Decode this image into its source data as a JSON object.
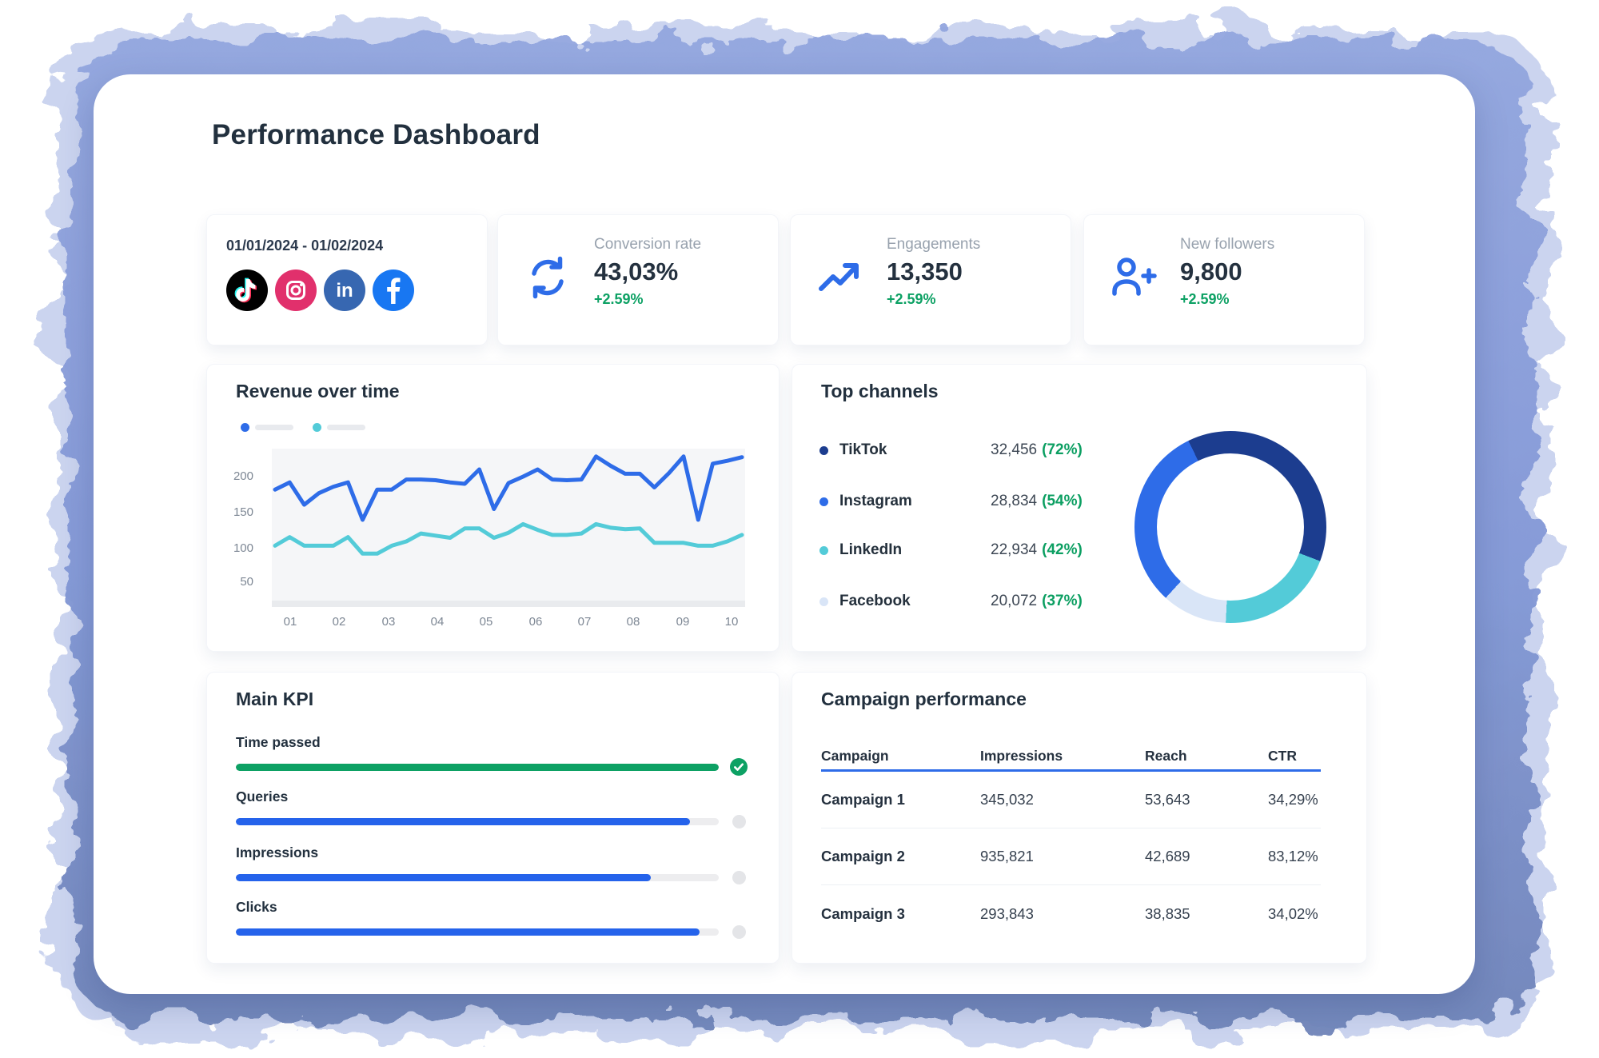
{
  "page": {
    "title": "Performance Dashboard"
  },
  "date_card": {
    "range": "01/01/2024 - 01/02/2024",
    "icons": [
      "tiktok-icon",
      "instagram-icon",
      "linkedin-icon",
      "facebook-icon"
    ]
  },
  "kpi_cards": [
    {
      "icon": "refresh-icon",
      "label": "Conversion rate",
      "value": "43,03%",
      "delta": "+2.59%"
    },
    {
      "icon": "trend-up-icon",
      "label": "Engagements",
      "value": "13,350",
      "delta": "+2.59%"
    },
    {
      "icon": "user-plus-icon",
      "label": "New followers",
      "value": "9,800",
      "delta": "+2.59%"
    }
  ],
  "revenue_panel": {
    "title": "Revenue over time"
  },
  "top_channels": {
    "title": "Top channels",
    "rows": [
      {
        "name": "TikTok",
        "value": "32,456",
        "pct": "(72%)",
        "dot_color": "#1c3d8f"
      },
      {
        "name": "Instagram",
        "value": "28,834",
        "pct": "(54%)",
        "dot_color": "#2e6ce8"
      },
      {
        "name": "LinkedIn",
        "value": "22,934",
        "pct": "(42%)",
        "dot_color": "#53cbd8"
      },
      {
        "name": "Facebook",
        "value": "20,072",
        "pct": "(37%)",
        "dot_color": "#d9e5f7"
      }
    ]
  },
  "main_kpi": {
    "title": "Main KPI",
    "bars": [
      {
        "label": "Time passed",
        "percent": 100,
        "color": "#0da164",
        "status": "complete"
      },
      {
        "label": "Queries",
        "percent": 94,
        "color": "#2563eb",
        "status": "in-progress"
      },
      {
        "label": "Impressions",
        "percent": 86,
        "color": "#2563eb",
        "status": "in-progress"
      },
      {
        "label": "Clicks",
        "percent": 96,
        "color": "#2563eb",
        "status": "in-progress"
      }
    ]
  },
  "campaign": {
    "title": "Campaign performance",
    "columns": [
      "Campaign",
      "Impressions",
      "Reach",
      "CTR"
    ],
    "rows": [
      {
        "campaign": "Campaign 1",
        "impressions": "345,032",
        "reach": "53,643",
        "ctr": "34,29%"
      },
      {
        "campaign": "Campaign 2",
        "impressions": "935,821",
        "reach": "42,689",
        "ctr": "83,12%"
      },
      {
        "campaign": "Campaign 3",
        "impressions": "293,843",
        "reach": "38,835",
        "ctr": "34,02%"
      }
    ]
  },
  "chart_data": [
    {
      "type": "line",
      "title": "Revenue over time",
      "x_labels": [
        "01",
        "02",
        "03",
        "04",
        "05",
        "06",
        "07",
        "08",
        "09",
        "10"
      ],
      "y_ticks": [
        200,
        150,
        100,
        50
      ],
      "ylim": [
        0,
        240
      ],
      "grid": false,
      "legend_position": "top-left",
      "legend_labels_visible": false,
      "series": [
        {
          "name": "series-1",
          "color": "#2e6ce8",
          "values": [
            182,
            192,
            161,
            177,
            186,
            192,
            140,
            182,
            182,
            196,
            196,
            195,
            192,
            190,
            210,
            155,
            191,
            200,
            210,
            196,
            195,
            196,
            228,
            215,
            204,
            204,
            185,
            205,
            228,
            140,
            218,
            222,
            227
          ]
        },
        {
          "name": "series-2",
          "color": "#53cbd8",
          "values": [
            104,
            116,
            104,
            104,
            104,
            116,
            93,
            93,
            104,
            110,
            121,
            118,
            115,
            128,
            128,
            115,
            122,
            134,
            126,
            119,
            119,
            121,
            134,
            129,
            127,
            128,
            108,
            108,
            108,
            104,
            104,
            110,
            119
          ]
        }
      ]
    },
    {
      "type": "pie",
      "title": "Top channels",
      "donut": true,
      "start_angle_deg": -26,
      "segments": [
        {
          "label": "TikTok",
          "value": 32456,
          "share_pct": 38,
          "color": "#1c3d8f"
        },
        {
          "label": "LinkedIn",
          "value": 22934,
          "share_pct": 20,
          "color": "#53cbd8"
        },
        {
          "label": "Facebook",
          "value": 20072,
          "share_pct": 11,
          "color": "#d9e5f7"
        },
        {
          "label": "Instagram",
          "value": 28834,
          "share_pct": 31,
          "color": "#2e6ce8"
        }
      ]
    }
  ]
}
